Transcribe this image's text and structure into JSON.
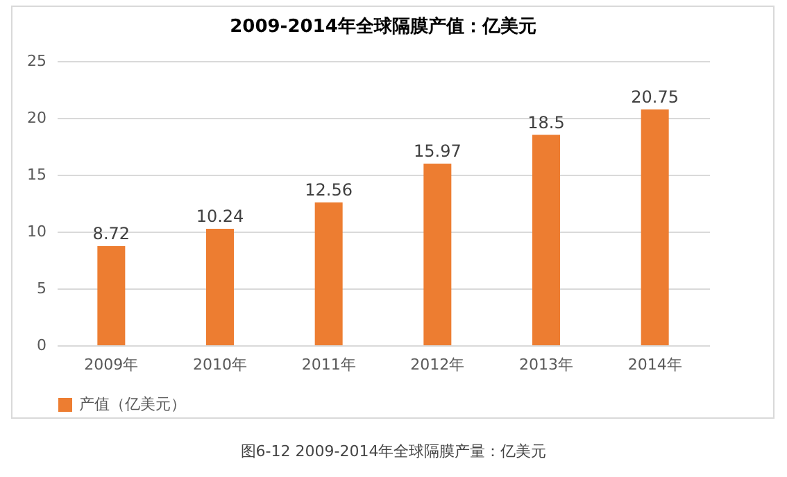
{
  "chart_data": {
    "type": "bar",
    "title": "2009-2014年全球隔膜产值：亿美元",
    "categories": [
      "2009年",
      "2010年",
      "2011年",
      "2012年",
      "2013年",
      "2014年"
    ],
    "series": [
      {
        "name": "产值（亿美元）",
        "color": "#ed7d31",
        "values": [
          8.72,
          10.24,
          12.56,
          15.97,
          18.5,
          20.75
        ]
      }
    ],
    "ylim": [
      0,
      25
    ],
    "yticks": [
      0,
      5,
      10,
      15,
      20,
      25
    ],
    "grid": "y",
    "legend": "bottom",
    "data_labels": true,
    "annotations": [
      "图6-12 2009-2014年全球隔膜产量：亿美元"
    ]
  }
}
